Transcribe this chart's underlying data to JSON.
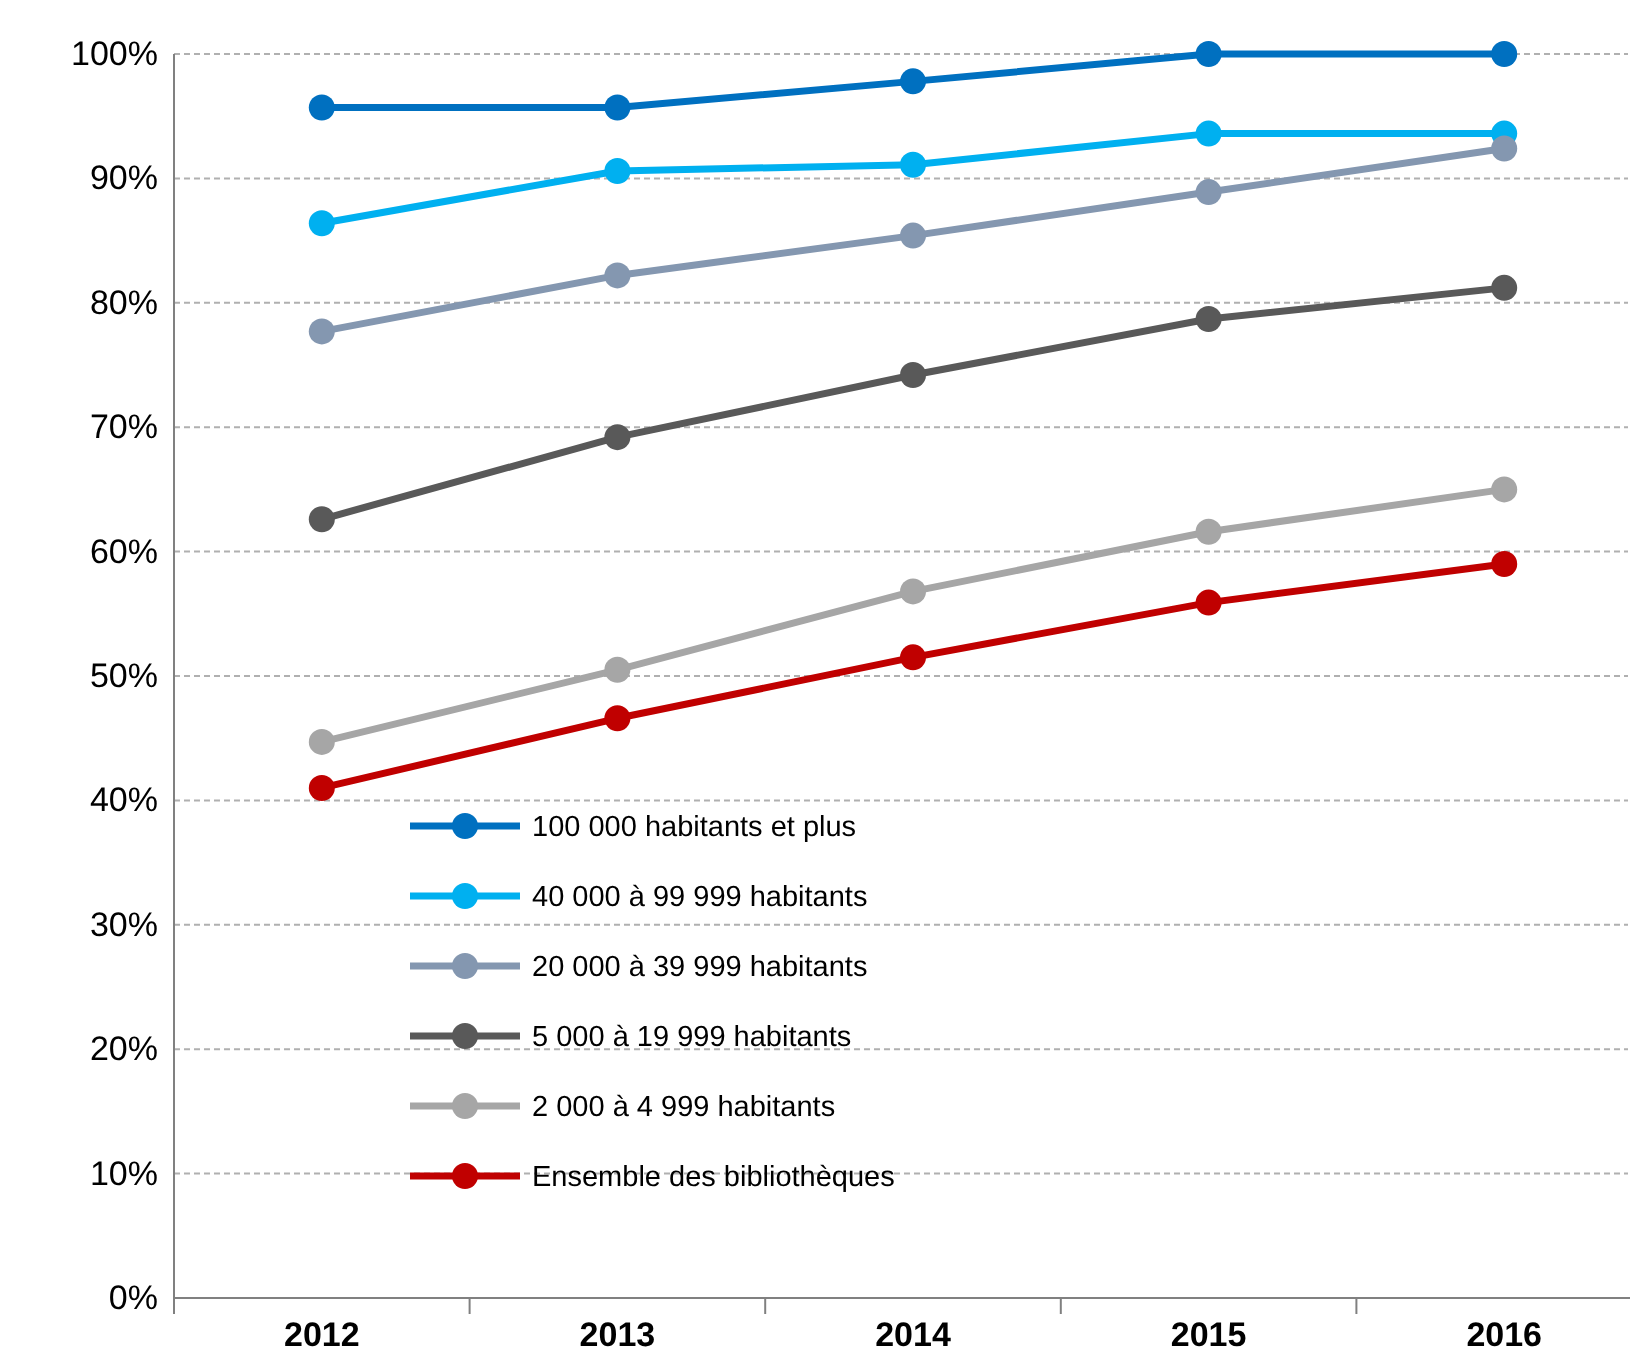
{
  "chart_data": {
    "type": "line",
    "categories": [
      "2012",
      "2013",
      "2014",
      "2015",
      "2016"
    ],
    "ylim": [
      0,
      100
    ],
    "yticks": [
      {
        "value": 0,
        "label": "0%"
      },
      {
        "value": 10,
        "label": "10%"
      },
      {
        "value": 20,
        "label": "20%"
      },
      {
        "value": 30,
        "label": "30%"
      },
      {
        "value": 40,
        "label": "40%"
      },
      {
        "value": 50,
        "label": "50%"
      },
      {
        "value": 60,
        "label": "60%"
      },
      {
        "value": 70,
        "label": "70%"
      },
      {
        "value": 80,
        "label": "80%"
      },
      {
        "value": 90,
        "label": "90%"
      },
      {
        "value": 100,
        "label": "100%"
      }
    ],
    "grid": "y",
    "legend": "bottom left",
    "marker": "circle",
    "line_style": "solid",
    "series": [
      {
        "name": "100 000 habitants et plus",
        "color": "#0070c0",
        "values": [
          95.7,
          95.7,
          97.8,
          100,
          100
        ]
      },
      {
        "name": "40 000 à 99 999 habitants",
        "color": "#00b0f0",
        "values": [
          86.4,
          90.6,
          91.1,
          93.6,
          93.6
        ]
      },
      {
        "name": "20 000 à 39 999 habitants",
        "color": "#8497b0",
        "values": [
          77.7,
          82.2,
          85.4,
          88.9,
          92.4
        ]
      },
      {
        "name": "5 000 à 19 999 habitants",
        "color": "#595959",
        "values": [
          62.6,
          69.2,
          74.2,
          78.7,
          81.2
        ]
      },
      {
        "name": "2 000 à 4 999 habitants",
        "color": "#a6a6a6",
        "values": [
          44.7,
          50.5,
          56.8,
          61.6,
          65.0
        ]
      },
      {
        "name": "Ensemble des bibliothèques",
        "color": "#c00000",
        "values": [
          41.0,
          46.6,
          51.5,
          55.9,
          59.0
        ]
      }
    ]
  }
}
